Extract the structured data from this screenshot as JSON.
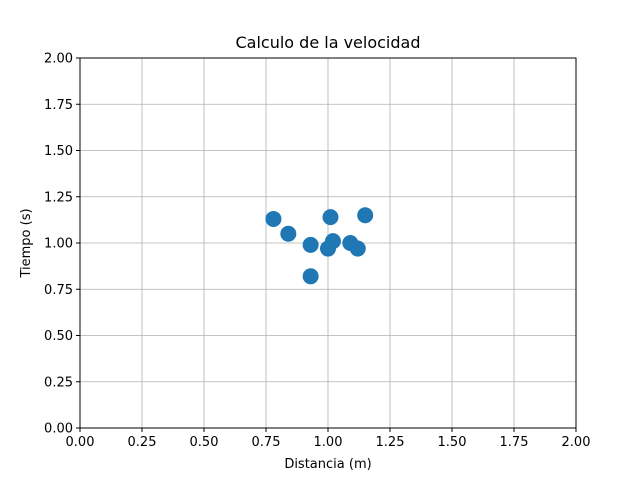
{
  "chart_data": {
    "type": "scatter",
    "title": "Calculo de la velocidad",
    "xlabel": "Distancia (m)",
    "ylabel": "Tiempo (s)",
    "xlim": [
      0,
      2
    ],
    "ylim": [
      0,
      2
    ],
    "xticks": [
      "0.00",
      "0.25",
      "0.50",
      "0.75",
      "1.00",
      "1.25",
      "1.50",
      "1.75",
      "2.00"
    ],
    "yticks": [
      "0.00",
      "0.25",
      "0.50",
      "0.75",
      "1.00",
      "1.25",
      "1.50",
      "1.75",
      "2.00"
    ],
    "grid": true,
    "marker_color": "#1f77b4",
    "points": [
      {
        "x": 0.78,
        "y": 1.13
      },
      {
        "x": 0.84,
        "y": 1.05
      },
      {
        "x": 0.93,
        "y": 0.99
      },
      {
        "x": 0.93,
        "y": 0.82
      },
      {
        "x": 1.0,
        "y": 0.97
      },
      {
        "x": 1.01,
        "y": 1.14
      },
      {
        "x": 1.02,
        "y": 1.01
      },
      {
        "x": 1.09,
        "y": 1.0
      },
      {
        "x": 1.12,
        "y": 0.97
      },
      {
        "x": 1.15,
        "y": 1.15
      }
    ]
  }
}
